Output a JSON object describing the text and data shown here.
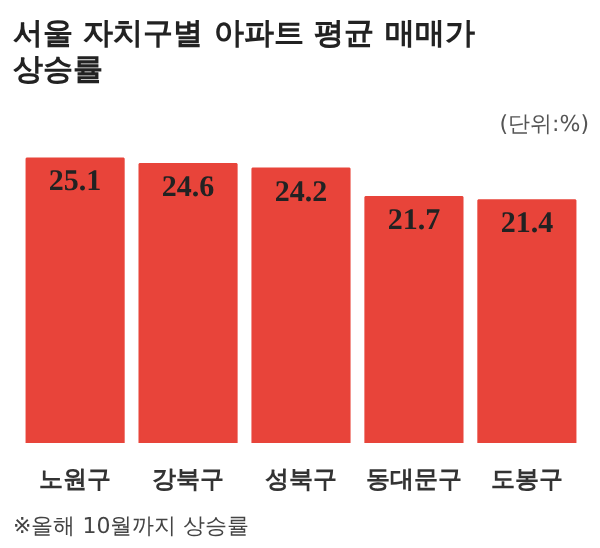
{
  "chart_data": {
    "type": "bar",
    "title": "서울 자치구별 아파트 평균 매매가\n상승률",
    "subtitle": "(단위:%)",
    "categories": [
      "노원구",
      "강북구",
      "성북구",
      "동대문구",
      "도봉구"
    ],
    "values": [
      25.1,
      24.6,
      24.2,
      21.7,
      21.4
    ],
    "color": "#e8443a",
    "data_labels": true,
    "grid": false,
    "annotations": [
      "※올해 10월까지 상승률"
    ]
  }
}
